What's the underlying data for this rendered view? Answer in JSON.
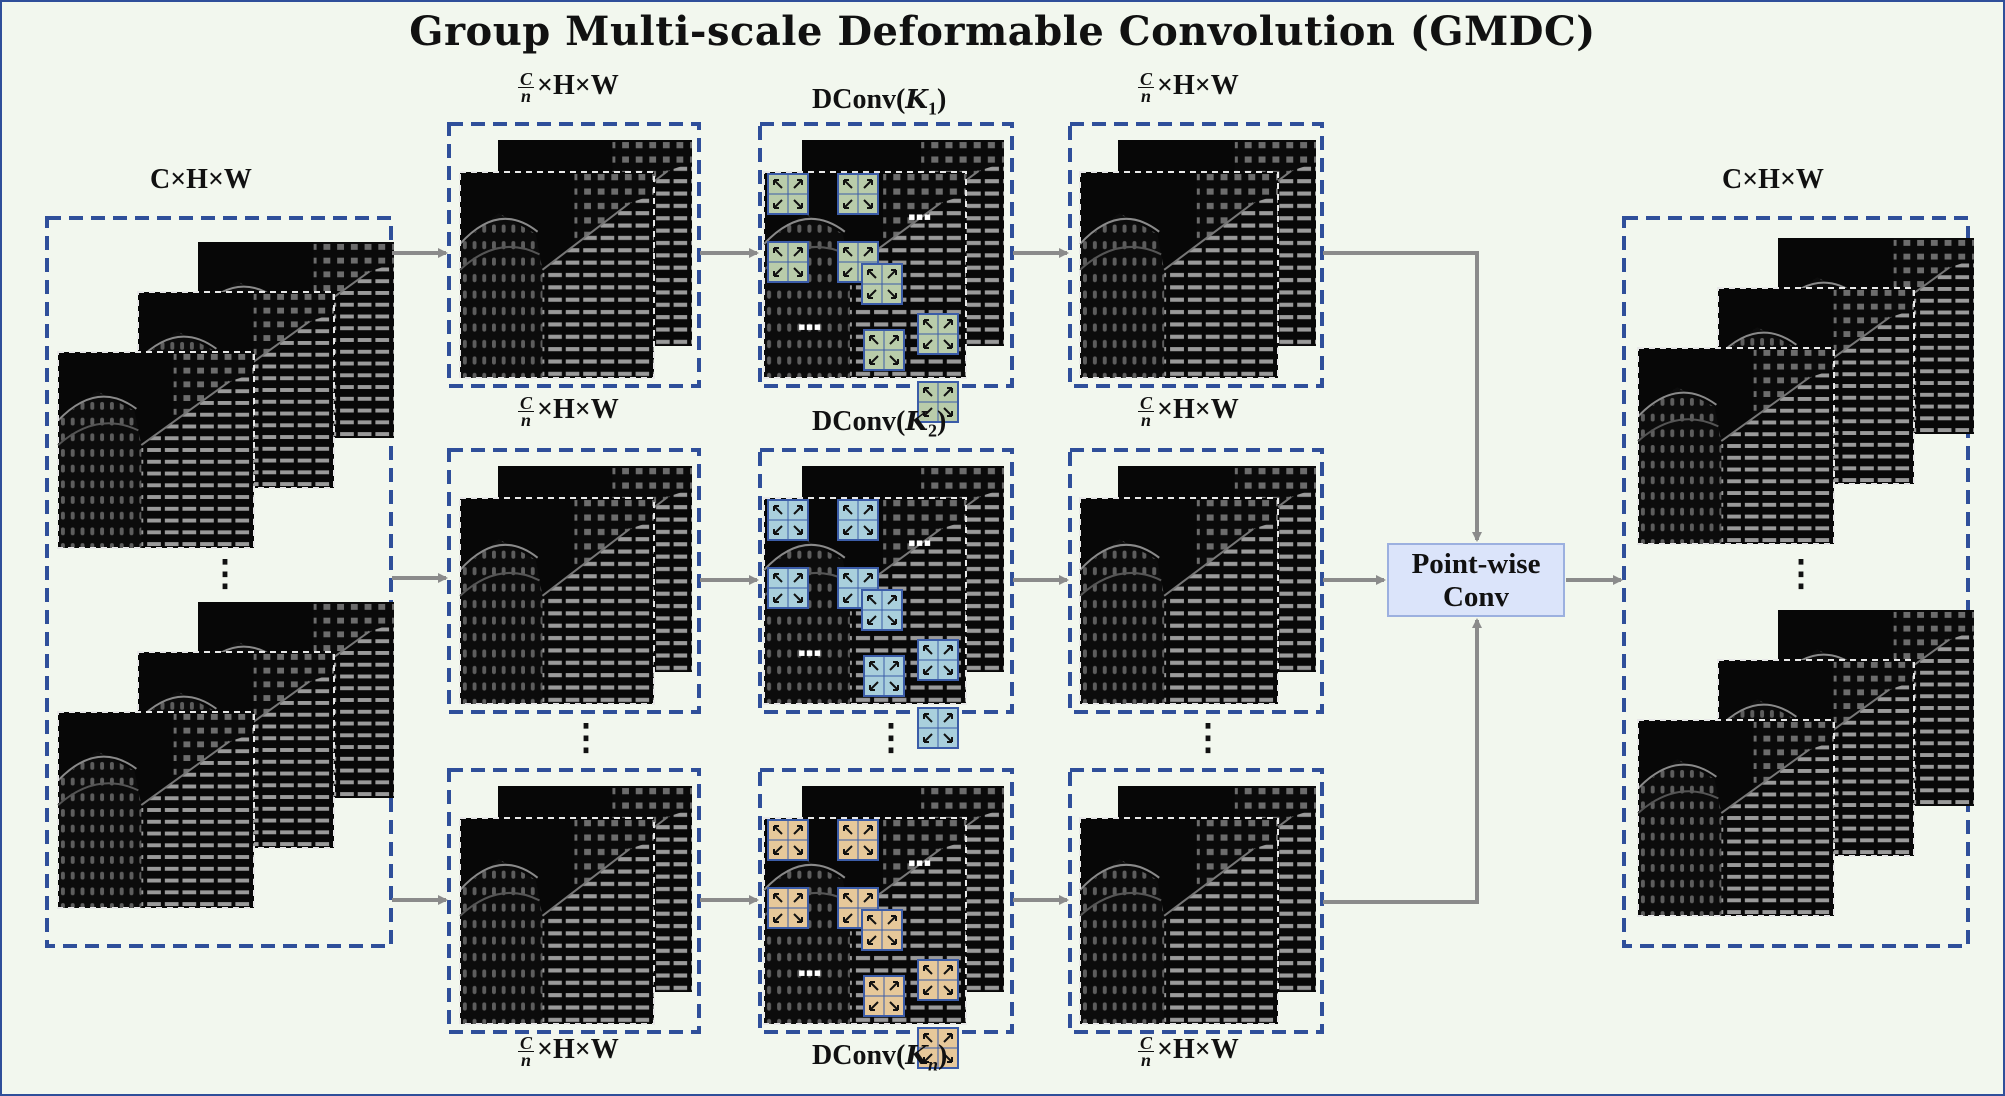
{
  "title": "Group Multi-scale Deformable Convolution (GMDC)",
  "labels": {
    "input_dims": "C×H×W",
    "output_dims": "C×H×W",
    "group_dims_numerator": "C",
    "group_dims_denominator": "n",
    "group_dims_rest": "×H×W",
    "dconv_prefix": "DConv(",
    "dconv_suffix": ")",
    "kernel_symbol": "K",
    "kernel_1": "1",
    "kernel_2": "2",
    "kernel_n": "n",
    "vertical_ellipsis": "⋮",
    "pointwise_line1": "Point-wise",
    "pointwise_line2": "Conv"
  },
  "colors": {
    "dashed_border": "#2f4f9a",
    "arrow": "#8b8b8b",
    "background": "#f2f7ee",
    "kernel_1_cells": "#b9ccaa",
    "kernel_2_cells": "#a9cfdc",
    "kernel_n_cells": "#e6c89a",
    "pointwise_fill": "#dbe4fa"
  }
}
